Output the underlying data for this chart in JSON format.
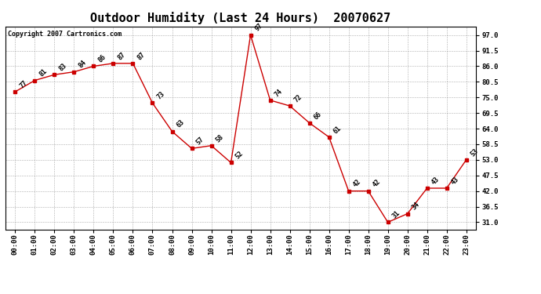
{
  "title": "Outdoor Humidity (Last 24 Hours)  20070627",
  "copyright": "Copyright 2007 Cartronics.com",
  "x_labels": [
    "00:00",
    "01:00",
    "02:00",
    "03:00",
    "04:00",
    "05:00",
    "06:00",
    "07:00",
    "08:00",
    "09:00",
    "10:00",
    "11:00",
    "12:00",
    "13:00",
    "14:00",
    "15:00",
    "16:00",
    "17:00",
    "18:00",
    "19:00",
    "20:00",
    "21:00",
    "22:00",
    "23:00"
  ],
  "x_values": [
    0,
    1,
    2,
    3,
    4,
    5,
    6,
    7,
    8,
    9,
    10,
    11,
    12,
    13,
    14,
    15,
    16,
    17,
    18,
    19,
    20,
    21,
    22,
    23
  ],
  "y_values": [
    77,
    81,
    83,
    84,
    86,
    87,
    87,
    73,
    63,
    57,
    58,
    52,
    97,
    74,
    72,
    66,
    61,
    42,
    42,
    31,
    34,
    43,
    43,
    53
  ],
  "y_labels": [
    31.0,
    36.5,
    42.0,
    47.5,
    53.0,
    58.5,
    64.0,
    69.5,
    75.0,
    80.5,
    86.0,
    91.5,
    97.0
  ],
  "ylim": [
    28.5,
    100.0
  ],
  "line_color": "#cc0000",
  "marker_color": "#cc0000",
  "bg_color": "#ffffff",
  "plot_bg_color": "#ffffff",
  "grid_color": "#999999",
  "title_fontsize": 11,
  "tick_fontsize": 6.5,
  "annotation_fontsize": 6,
  "copyright_fontsize": 6
}
